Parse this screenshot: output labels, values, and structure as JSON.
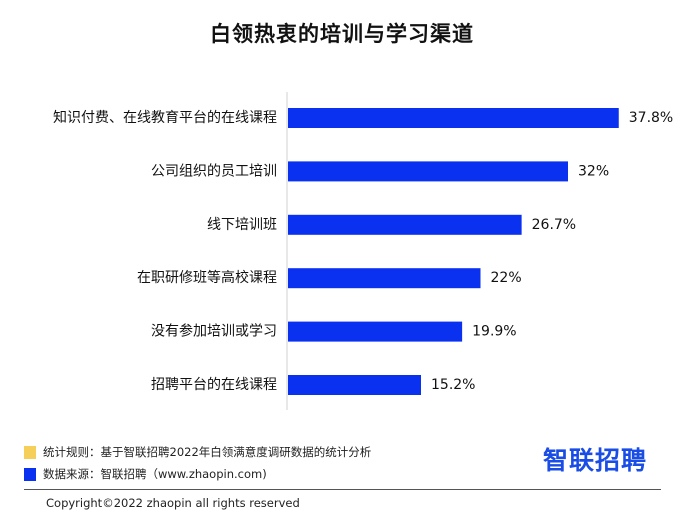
{
  "chart_data": {
    "type": "bar",
    "orientation": "horizontal",
    "title": "白领热衷的培训与学习渠道",
    "categories": [
      "知识付费、在线教育平台的在线课程",
      "公司组织的员工培训",
      "线下培训班",
      "在职研修班等高校课程",
      "没有参加培训或学习",
      "招聘平台的在线课程"
    ],
    "values": [
      37.8,
      32,
      26.7,
      22,
      19.9,
      15.2
    ],
    "value_labels": [
      "37.8%",
      "32%",
      "26.7%",
      "22%",
      "19.9%",
      "15.2%"
    ],
    "unit": "%",
    "xlim": [
      0,
      40
    ],
    "grid": false,
    "bar_color": "#0a31f0"
  },
  "footer": {
    "rule_label": "统计规则：基于智联招聘2022年白领满意度调研数据的统计分析",
    "rule_color": "#f5cf5a",
    "source_label": "数据来源：智联招聘（www.zhaopin.com)",
    "source_color": "#0a31f0",
    "brand": "智联招聘",
    "copyright": "Copyright©2022 zhaopin all rights reserved"
  }
}
